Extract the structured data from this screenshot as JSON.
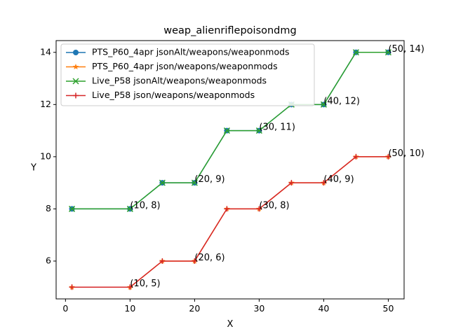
{
  "chart_data": {
    "type": "line",
    "title": "weap_alienriflepoisondmg",
    "xlabel": "X",
    "ylabel": "Y",
    "xlim": [
      -1.45,
      52.45
    ],
    "ylim": [
      4.55,
      14.45
    ],
    "xticks": [
      0,
      10,
      20,
      30,
      40,
      50
    ],
    "yticks": [
      6,
      8,
      10,
      12,
      14
    ],
    "grid": false,
    "legend_position": "upper-left",
    "x": [
      1,
      10,
      15,
      20,
      25,
      30,
      35,
      40,
      45,
      50
    ],
    "series": [
      {
        "name": "PTS_P60_4apr jsonAlt/weapons/weaponmods",
        "values": [
          8,
          8,
          9,
          9,
          11,
          11,
          12,
          12,
          14,
          14
        ],
        "color": "#1f77b4",
        "marker": "circle"
      },
      {
        "name": "PTS_P60_4apr json/weapons/weaponmods",
        "values": [
          5,
          5,
          6,
          6,
          8,
          8,
          9,
          9,
          10,
          10
        ],
        "color": "#ff7f0e",
        "marker": "star"
      },
      {
        "name": "Live_P58 jsonAlt/weapons/weaponmods",
        "values": [
          8,
          8,
          9,
          9,
          11,
          11,
          12,
          12,
          14,
          14
        ],
        "color": "#2ca02c",
        "marker": "x"
      },
      {
        "name": "Live_P58 json/weapons/weaponmods",
        "values": [
          5,
          5,
          6,
          6,
          8,
          8,
          9,
          9,
          10,
          10
        ],
        "color": "#d62728",
        "marker": "plus"
      }
    ],
    "annotations": [
      {
        "text": "(10, 8)",
        "x": 10,
        "y": 8
      },
      {
        "text": "(20, 9)",
        "x": 20,
        "y": 9
      },
      {
        "text": "(30, 11)",
        "x": 30,
        "y": 11
      },
      {
        "text": "(40, 12)",
        "x": 40,
        "y": 12
      },
      {
        "text": "(50, 14)",
        "x": 50,
        "y": 14
      },
      {
        "text": "(10, 5)",
        "x": 10,
        "y": 5
      },
      {
        "text": "(20, 6)",
        "x": 20,
        "y": 6
      },
      {
        "text": "(30, 8)",
        "x": 30,
        "y": 8
      },
      {
        "text": "(40, 9)",
        "x": 40,
        "y": 9
      },
      {
        "text": "(50, 10)",
        "x": 50,
        "y": 10
      }
    ]
  }
}
